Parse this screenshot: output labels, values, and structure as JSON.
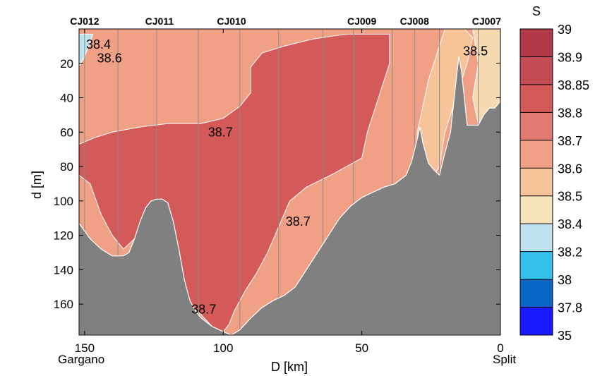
{
  "chart_data": {
    "type": "heatmap",
    "subtype": "filled-contour-section",
    "xlabel": "D [km]",
    "ylabel": "d [m]",
    "x_axis_reversed": true,
    "xlim": [
      152,
      0
    ],
    "ylim": [
      0,
      178
    ],
    "y_axis_reversed": true,
    "xticks": [
      150,
      100,
      50,
      0
    ],
    "yticks": [
      20,
      40,
      60,
      80,
      100,
      120,
      140,
      160
    ],
    "endpoint_labels": {
      "left": "Gargano",
      "right": "Split"
    },
    "stations": [
      {
        "name": "CJ012",
        "x": 150
      },
      {
        "name": "CJ011",
        "x": 123
      },
      {
        "name": "CJ010",
        "x": 97
      },
      {
        "name": "CJ009",
        "x": 50
      },
      {
        "name": "CJ008",
        "x": 31
      },
      {
        "name": "CJ007",
        "x": 5
      }
    ],
    "cast_lines_x": [
      150,
      138,
      124,
      109,
      94,
      80,
      64,
      53,
      39,
      31,
      22,
      8
    ],
    "bathymetry": [
      [
        152,
        113
      ],
      [
        148,
        122
      ],
      [
        144,
        128
      ],
      [
        140,
        132
      ],
      [
        136,
        132
      ],
      [
        134,
        130
      ],
      [
        132,
        122
      ],
      [
        130,
        112
      ],
      [
        128,
        104
      ],
      [
        126,
        100
      ],
      [
        124,
        99
      ],
      [
        122,
        99
      ],
      [
        120,
        101
      ],
      [
        118,
        112
      ],
      [
        116,
        128
      ],
      [
        114,
        146
      ],
      [
        112,
        158
      ],
      [
        110,
        164
      ],
      [
        108,
        168
      ],
      [
        104,
        173
      ],
      [
        100,
        176
      ],
      [
        97,
        178
      ],
      [
        94,
        175
      ],
      [
        90,
        168
      ],
      [
        86,
        162
      ],
      [
        82,
        158
      ],
      [
        78,
        155
      ],
      [
        74,
        150
      ],
      [
        70,
        140
      ],
      [
        66,
        130
      ],
      [
        62,
        120
      ],
      [
        58,
        110
      ],
      [
        54,
        103
      ],
      [
        50,
        98
      ],
      [
        46,
        95
      ],
      [
        42,
        92
      ],
      [
        38,
        90
      ],
      [
        34,
        85
      ],
      [
        32,
        77
      ],
      [
        30,
        64
      ],
      [
        29,
        57
      ],
      [
        28,
        66
      ],
      [
        26,
        78
      ],
      [
        24,
        82
      ],
      [
        22,
        85
      ],
      [
        20,
        72
      ],
      [
        18,
        60
      ],
      [
        16,
        30
      ],
      [
        15,
        16
      ],
      [
        14,
        25
      ],
      [
        12,
        56
      ],
      [
        10,
        56
      ],
      [
        8,
        56
      ],
      [
        6,
        50
      ],
      [
        4,
        46
      ],
      [
        2,
        46
      ],
      [
        0,
        42
      ]
    ],
    "contour_regions": [
      {
        "salinity": 38.7,
        "polygon": [
          [
            152,
            67
          ],
          [
            146,
            63
          ],
          [
            140,
            60
          ],
          [
            130,
            57
          ],
          [
            120,
            55
          ],
          [
            108,
            55
          ],
          [
            100,
            52
          ],
          [
            94,
            45
          ],
          [
            90,
            37
          ],
          [
            90,
            22
          ],
          [
            86,
            14
          ],
          [
            78,
            10
          ],
          [
            68,
            6
          ],
          [
            60,
            4
          ],
          [
            55,
            3
          ],
          [
            40,
            3
          ],
          [
            40,
            20
          ],
          [
            44,
            40
          ],
          [
            48,
            60
          ],
          [
            50,
            75
          ],
          [
            60,
            84
          ],
          [
            70,
            92
          ],
          [
            76,
            100
          ],
          [
            80,
            115
          ],
          [
            84,
            130
          ],
          [
            88,
            142
          ],
          [
            92,
            152
          ],
          [
            96,
            164
          ],
          [
            98,
            172
          ],
          [
            100,
            176
          ],
          [
            104,
            173
          ],
          [
            108,
            166
          ],
          [
            112,
            160
          ],
          [
            114,
            146
          ],
          [
            116,
            128
          ],
          [
            118,
            112
          ],
          [
            120,
            101
          ],
          [
            124,
            99
          ],
          [
            128,
            104
          ],
          [
            132,
            122
          ],
          [
            136,
            128
          ],
          [
            140,
            120
          ],
          [
            144,
            108
          ],
          [
            148,
            90
          ],
          [
            152,
            85
          ]
        ]
      },
      {
        "salinity": 38.4,
        "polygon": [
          [
            152,
            3
          ],
          [
            147,
            3
          ],
          [
            148,
            8
          ],
          [
            150,
            16
          ],
          [
            152,
            22
          ]
        ]
      }
    ],
    "background_salinity": 38.6,
    "nearshore_salinity": 38.5,
    "contour_labels": [
      {
        "text": "38.4",
        "x": 145,
        "y": 9
      },
      {
        "text": "38.6",
        "x": 141,
        "y": 17
      },
      {
        "text": "38.7",
        "x": 101,
        "y": 60
      },
      {
        "text": "38.7",
        "x": 73,
        "y": 112
      },
      {
        "text": "38.7",
        "x": 107,
        "y": 163
      },
      {
        "text": "38.5",
        "x": 9,
        "y": 13
      }
    ],
    "colorbar": {
      "title": "S",
      "levels": [
        "39",
        "38.9",
        "38.85",
        "38.8",
        "38.7",
        "38.6",
        "38.5",
        "38.4",
        "38.2",
        "38",
        "37.8",
        "35"
      ],
      "colors": [
        "#b23a48",
        "#c44a54",
        "#d45a5a",
        "#e27a72",
        "#f0a085",
        "#f7c49a",
        "#f5e3bc",
        "#bfe3ee",
        "#35c0ec",
        "#0a66c4",
        "#1a1aff"
      ]
    }
  }
}
